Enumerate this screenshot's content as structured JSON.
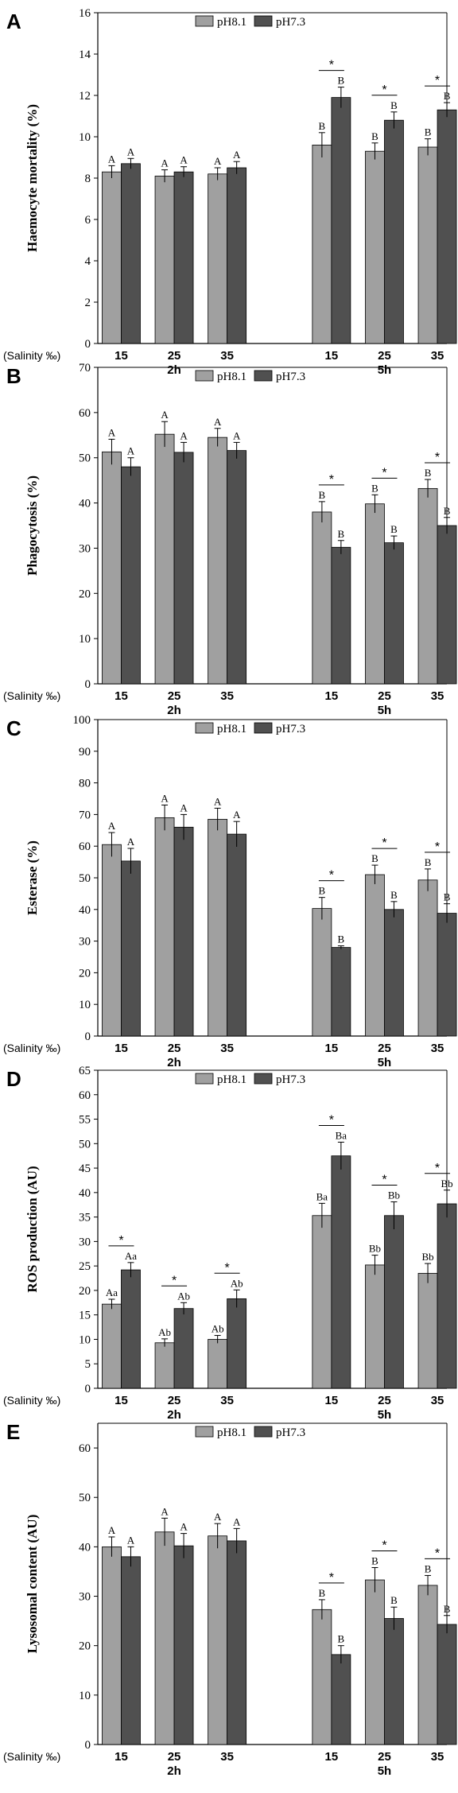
{
  "colors": {
    "s1": "#a0a0a0",
    "s2": "#505050",
    "axis": "#000000"
  },
  "legend": [
    "pH8.1",
    "pH7.3"
  ],
  "chart_data": [
    {
      "type": "bar",
      "panel": "A",
      "ylabel": "Haemocyte mortality (%)",
      "ylim": [
        0,
        16
      ],
      "yticks": [
        0,
        2,
        4,
        6,
        8,
        10,
        12,
        14,
        16
      ],
      "categories": [
        "15",
        "25",
        "35",
        "15",
        "25",
        "35"
      ],
      "groups": [
        "2h",
        "5h"
      ],
      "salinity_label": "(Salinity ‰)",
      "series": [
        {
          "name": "pH8.1",
          "values": [
            8.3,
            8.1,
            8.2,
            9.6,
            9.3,
            9.5
          ],
          "errors": [
            0.3,
            0.3,
            0.3,
            0.6,
            0.4,
            0.4
          ],
          "labels": [
            "A",
            "A",
            "A",
            "B",
            "B",
            "B"
          ]
        },
        {
          "name": "pH7.3",
          "values": [
            8.7,
            8.3,
            8.5,
            11.9,
            10.8,
            11.3
          ],
          "errors": [
            0.25,
            0.25,
            0.3,
            0.5,
            0.4,
            0.35
          ],
          "labels": [
            "A",
            "A",
            "A",
            "B",
            "B",
            "B"
          ]
        }
      ],
      "significance": [
        false,
        false,
        false,
        true,
        true,
        true
      ],
      "significance_mark": "*"
    },
    {
      "type": "bar",
      "panel": "B",
      "ylabel": "Phagocytosis (%)",
      "ylim": [
        0,
        70
      ],
      "yticks": [
        0,
        10,
        20,
        30,
        40,
        50,
        60,
        70
      ],
      "categories": [
        "15",
        "25",
        "35",
        "15",
        "25",
        "35"
      ],
      "groups": [
        "2h",
        "5h"
      ],
      "salinity_label": "(Salinity ‰)",
      "series": [
        {
          "name": "pH8.1",
          "values": [
            51.3,
            55.2,
            54.5,
            38.0,
            39.8,
            43.2
          ],
          "errors": [
            2.8,
            2.8,
            2.0,
            2.3,
            2.0,
            2.0
          ],
          "labels": [
            "A",
            "A",
            "A",
            "B",
            "B",
            "B"
          ]
        },
        {
          "name": "pH7.3",
          "values": [
            48.0,
            51.2,
            51.6,
            30.2,
            31.2,
            35.0
          ],
          "errors": [
            2.0,
            2.2,
            1.8,
            1.5,
            1.5,
            1.8
          ],
          "labels": [
            "A",
            "A",
            "A",
            "B",
            "B",
            "B"
          ]
        }
      ],
      "significance": [
        false,
        false,
        false,
        true,
        true,
        true
      ],
      "significance_mark": "*"
    },
    {
      "type": "bar",
      "panel": "C",
      "ylabel": "Esterase (%)",
      "ylim": [
        0,
        100
      ],
      "yticks": [
        0,
        10,
        20,
        30,
        40,
        50,
        60,
        70,
        80,
        90,
        100
      ],
      "categories": [
        "15",
        "25",
        "35",
        "15",
        "25",
        "35"
      ],
      "groups": [
        "2h",
        "5h"
      ],
      "salinity_label": "(Salinity ‰)",
      "series": [
        {
          "name": "pH8.1",
          "values": [
            60.5,
            69.0,
            68.5,
            40.3,
            51.0,
            49.3
          ],
          "errors": [
            3.8,
            4.0,
            3.5,
            3.5,
            3.0,
            3.5
          ],
          "labels": [
            "A",
            "A",
            "A",
            "B",
            "B",
            "B"
          ]
        },
        {
          "name": "pH7.3",
          "values": [
            55.3,
            66.0,
            63.8,
            28.0,
            40.0,
            38.8
          ],
          "errors": [
            4.0,
            4.0,
            4.0,
            0.5,
            2.5,
            3.0
          ],
          "labels": [
            "A",
            "A",
            "A",
            "B",
            "B",
            "B"
          ]
        }
      ],
      "significance": [
        false,
        false,
        false,
        true,
        true,
        true
      ],
      "significance_mark": "*"
    },
    {
      "type": "bar",
      "panel": "D",
      "ylabel": "ROS production (AU)",
      "ylim": [
        0,
        65
      ],
      "yticks": [
        0,
        5,
        10,
        15,
        20,
        25,
        30,
        35,
        40,
        45,
        50,
        55,
        60,
        65
      ],
      "categories": [
        "15",
        "25",
        "35",
        "15",
        "25",
        "35"
      ],
      "groups": [
        "2h",
        "5h"
      ],
      "salinity_label": "(Salinity ‰)",
      "series": [
        {
          "name": "pH8.1",
          "values": [
            17.2,
            9.3,
            10.0,
            35.3,
            25.2,
            23.5
          ],
          "errors": [
            1.0,
            0.8,
            0.8,
            2.5,
            2.0,
            2.0
          ],
          "labels": [
            "Aa",
            "Ab",
            "Ab",
            "Ba",
            "Bb",
            "Bb"
          ]
        },
        {
          "name": "pH7.3",
          "values": [
            24.2,
            16.3,
            18.3,
            47.5,
            35.3,
            37.7
          ],
          "errors": [
            1.5,
            1.2,
            1.8,
            2.8,
            2.8,
            2.8
          ],
          "labels": [
            "Aa",
            "Ab",
            "Ab",
            "Ba",
            "Bb",
            "Bb"
          ]
        }
      ],
      "significance": [
        true,
        true,
        true,
        true,
        true,
        true
      ],
      "significance_mark": "*"
    },
    {
      "type": "bar",
      "panel": "E",
      "ylabel": "Lysosomal content (AU)",
      "ylim": [
        0,
        65
      ],
      "yticks": [
        0,
        10,
        20,
        30,
        40,
        50,
        60
      ],
      "categories": [
        "15",
        "25",
        "35",
        "15",
        "25",
        "35"
      ],
      "groups": [
        "2h",
        "5h"
      ],
      "salinity_label": "(Salinity ‰)",
      "series": [
        {
          "name": "pH8.1",
          "values": [
            40.0,
            43.0,
            42.2,
            27.3,
            33.3,
            32.2
          ],
          "errors": [
            2.0,
            2.8,
            2.5,
            2.0,
            2.5,
            2.0
          ],
          "labels": [
            "A",
            "A",
            "A",
            "B",
            "B",
            "B"
          ]
        },
        {
          "name": "pH7.3",
          "values": [
            38.0,
            40.2,
            41.2,
            18.2,
            25.5,
            24.3
          ],
          "errors": [
            2.0,
            2.5,
            2.5,
            1.8,
            2.3,
            1.8
          ],
          "labels": [
            "A",
            "A",
            "A",
            "B",
            "B",
            "B"
          ]
        }
      ],
      "significance": [
        false,
        false,
        false,
        true,
        true,
        true
      ],
      "significance_mark": "*"
    }
  ]
}
